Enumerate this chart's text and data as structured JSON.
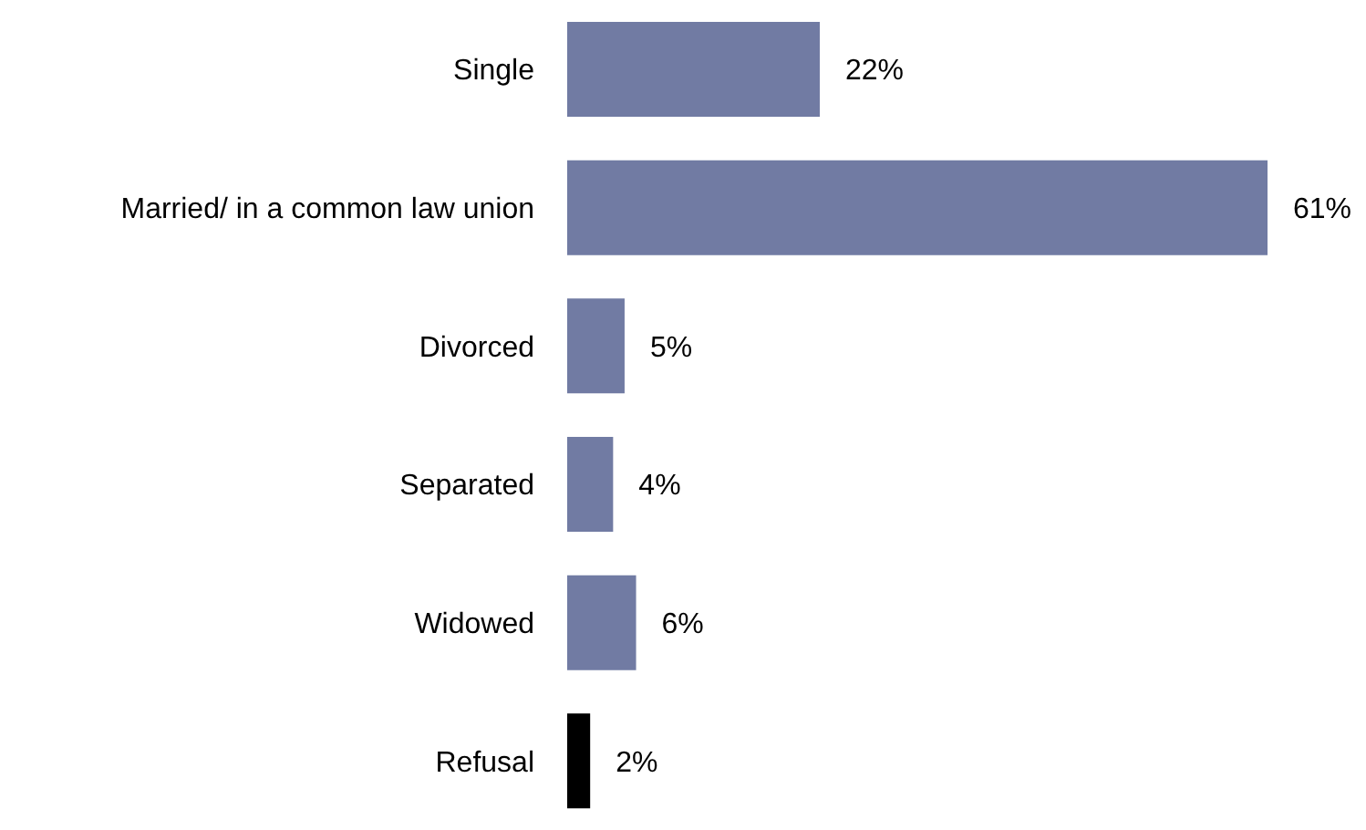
{
  "chart_data": {
    "type": "bar",
    "orientation": "horizontal",
    "categories": [
      "Single",
      "Married/ in a common law union",
      "Divorced",
      "Separated",
      "Widowed",
      "Refusal"
    ],
    "values": [
      22,
      61,
      5,
      4,
      6,
      2
    ],
    "colors": [
      "#717ba3",
      "#717ba3",
      "#717ba3",
      "#717ba3",
      "#717ba3",
      "#000000"
    ],
    "value_labels": [
      "22%",
      "61%",
      "5%",
      "4%",
      "6%",
      "2%"
    ],
    "grid": false,
    "legend": false
  }
}
